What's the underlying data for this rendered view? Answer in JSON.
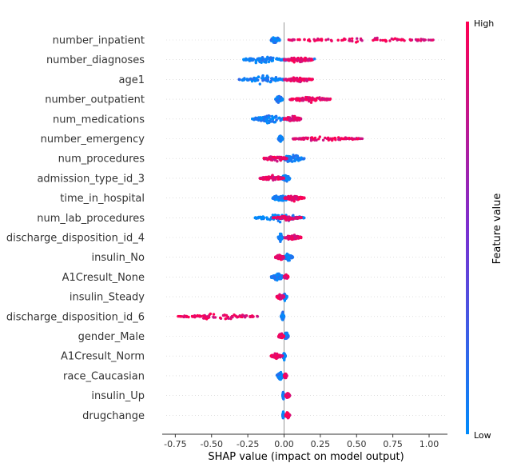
{
  "chart_data": {
    "type": "scatter",
    "subtype": "shap-beeswarm",
    "xlabel": "SHAP value (impact on model output)",
    "xlim": [
      -0.82,
      1.12
    ],
    "xticks": [
      "-0.75",
      "-0.50",
      "-0.25",
      "0.00",
      "0.25",
      "0.50",
      "0.75",
      "1.00"
    ],
    "xtick_values": [
      -0.75,
      -0.5,
      -0.25,
      0,
      0.25,
      0.5,
      0.75,
      1.0
    ],
    "colorbar": {
      "high": "High",
      "low": "Low",
      "title": "Feature value",
      "colors": [
        "#008bfb",
        "#7b2fd0",
        "#ff0052"
      ]
    },
    "features": [
      {
        "name": "number_inpatient",
        "low_range": [
          -0.09,
          -0.03
        ],
        "high_range": [
          0.03,
          1.03
        ]
      },
      {
        "name": "number_diagnoses",
        "low_range": [
          -0.28,
          0.02
        ],
        "high_range": [
          0.0,
          0.2
        ],
        "extra_high": [
          0.21
        ]
      },
      {
        "name": "age1",
        "low_range": [
          -0.31,
          0.0
        ],
        "high_range": [
          0.0,
          0.2
        ]
      },
      {
        "name": "number_outpatient",
        "low_range": [
          -0.06,
          -0.01
        ],
        "high_range": [
          0.04,
          0.32
        ]
      },
      {
        "name": "num_medications",
        "low_range": [
          -0.22,
          0.02
        ],
        "high_range": [
          0.0,
          0.12
        ]
      },
      {
        "name": "number_emergency",
        "low_range": [
          -0.04,
          -0.01
        ],
        "high_range": [
          0.06,
          0.54
        ]
      },
      {
        "name": "num_procedures",
        "low_range": [
          -0.02,
          0.14
        ],
        "high_range": [
          -0.14,
          0.02
        ]
      },
      {
        "name": "admission_type_id_3",
        "low_range": [
          -0.02,
          0.04
        ],
        "high_range": [
          -0.17,
          0.0
        ]
      },
      {
        "name": "time_in_hospital",
        "low_range": [
          -0.08,
          0.03
        ],
        "high_range": [
          0.0,
          0.14
        ]
      },
      {
        "name": "num_lab_procedures",
        "low_range": [
          -0.2,
          0.14
        ],
        "high_range": [
          -0.08,
          0.12
        ]
      },
      {
        "name": "discharge_disposition_id_4",
        "low_range": [
          -0.04,
          -0.01
        ],
        "high_range": [
          0.0,
          0.12
        ]
      },
      {
        "name": "insulin_No",
        "low_range": [
          0.0,
          0.06
        ],
        "high_range": [
          -0.06,
          0.0
        ]
      },
      {
        "name": "A1Cresult_None",
        "low_range": [
          -0.09,
          0.0
        ],
        "high_range": [
          0.0,
          0.03
        ]
      },
      {
        "name": "insulin_Steady",
        "low_range": [
          -0.01,
          0.02
        ],
        "high_range": [
          -0.05,
          0.0
        ]
      },
      {
        "name": "discharge_disposition_id_6",
        "low_range": [
          -0.02,
          0.0
        ],
        "high_range": [
          -0.73,
          -0.18
        ]
      },
      {
        "name": "gender_Male",
        "low_range": [
          0.0,
          0.03
        ],
        "high_range": [
          -0.04,
          0.0
        ]
      },
      {
        "name": "A1Cresult_Norm",
        "low_range": [
          -0.01,
          0.01
        ],
        "high_range": [
          -0.09,
          -0.01
        ]
      },
      {
        "name": "race_Caucasian",
        "low_range": [
          -0.05,
          0.0
        ],
        "high_range": [
          0.0,
          0.02
        ]
      },
      {
        "name": "insulin_Up",
        "low_range": [
          -0.01,
          0.0
        ],
        "high_range": [
          0.01,
          0.04
        ]
      },
      {
        "name": "drugchange",
        "low_range": [
          -0.01,
          0.0
        ],
        "high_range": [
          0.01,
          0.04
        ]
      }
    ]
  }
}
